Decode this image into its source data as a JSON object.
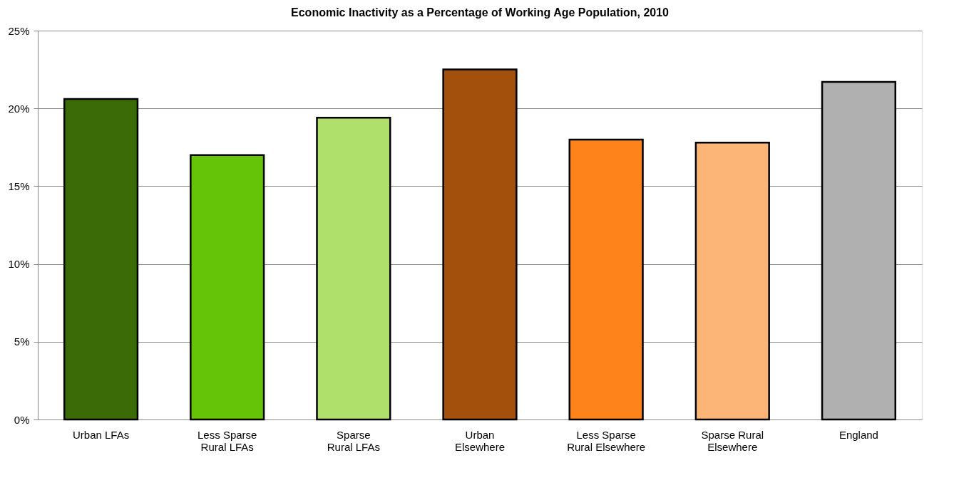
{
  "chart_data": {
    "type": "bar",
    "title": "Economic Inactivity as a Percentage of Working Age Population, 2010",
    "categories": [
      "Urban LFAs",
      "Less Sparse Rural LFAs",
      "Sparse Rural LFAs",
      "Urban Elsewhere",
      "Less Sparse Rural Elsewhere",
      "Sparse Rural Elsewhere",
      "England"
    ],
    "values": [
      20.6,
      17.0,
      19.4,
      22.5,
      18.0,
      17.8,
      21.7
    ],
    "colors": [
      "#3b6b06",
      "#66c408",
      "#b0e06c",
      "#a4500d",
      "#fd831a",
      "#fdb577",
      "#b0b0b0"
    ],
    "ylim": [
      0,
      25
    ],
    "yticks": [
      {
        "value": 0,
        "label": "0%"
      },
      {
        "value": 5,
        "label": "5%"
      },
      {
        "value": 10,
        "label": "10%"
      },
      {
        "value": 15,
        "label": "15%"
      },
      {
        "value": 20,
        "label": "20%"
      },
      {
        "value": 25,
        "label": "25%"
      }
    ],
    "grid": "y"
  }
}
